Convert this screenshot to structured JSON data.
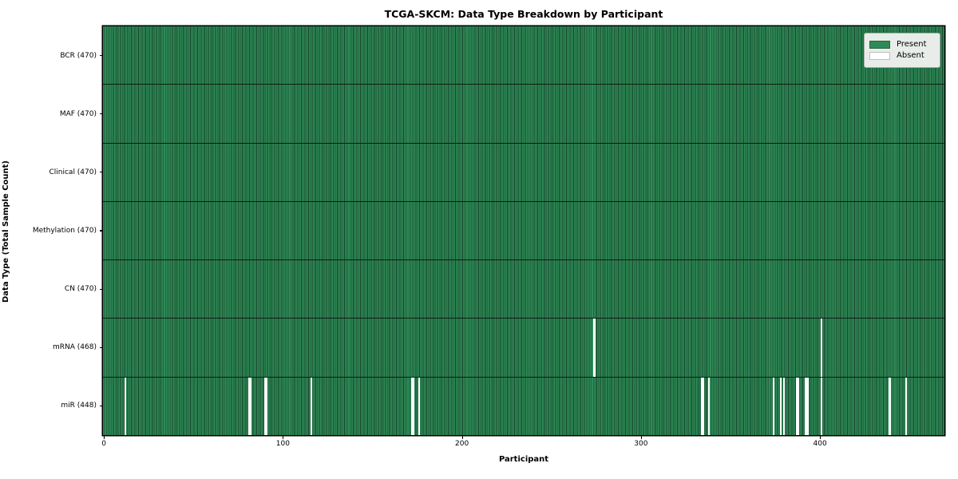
{
  "chart_data": {
    "type": "heatmap",
    "title": "TCGA-SKCM: Data Type Breakdown by Participant",
    "xlabel": "Participant",
    "ylabel": "Data Type (Total Sample Count)",
    "n_participants": 470,
    "x_ticks": [
      0,
      100,
      200,
      300,
      400
    ],
    "x_range": [
      0,
      470
    ],
    "grid": false,
    "legend_position": "upper right",
    "colors": {
      "present": "#2e8b57",
      "present_edge": "#16432a",
      "absent": "#ffffff",
      "row_divider": "#0b1f14",
      "spine": "#000000",
      "legend_bg": "#e9ede9"
    },
    "rows": [
      {
        "label": "BCR (470)",
        "total": 470,
        "absent": []
      },
      {
        "label": "MAF (470)",
        "total": 470,
        "absent": []
      },
      {
        "label": "Clinical (470)",
        "total": 470,
        "absent": []
      },
      {
        "label": "Methylation (470)",
        "total": 470,
        "absent": []
      },
      {
        "label": "CN (470)",
        "total": 470,
        "absent": []
      },
      {
        "label": "mRNA (468)",
        "total": 468,
        "absent": [
          274,
          401
        ]
      },
      {
        "label": "miR (448)",
        "total": 448,
        "absent": [
          12,
          81,
          82,
          90,
          91,
          116,
          172,
          173,
          176,
          334,
          335,
          338,
          374,
          378,
          380,
          387,
          388,
          392,
          393,
          401,
          439,
          448
        ]
      }
    ],
    "legend": [
      {
        "label": "Present",
        "color": "#2e8b57"
      },
      {
        "label": "Absent",
        "color": "#ffffff"
      }
    ]
  }
}
